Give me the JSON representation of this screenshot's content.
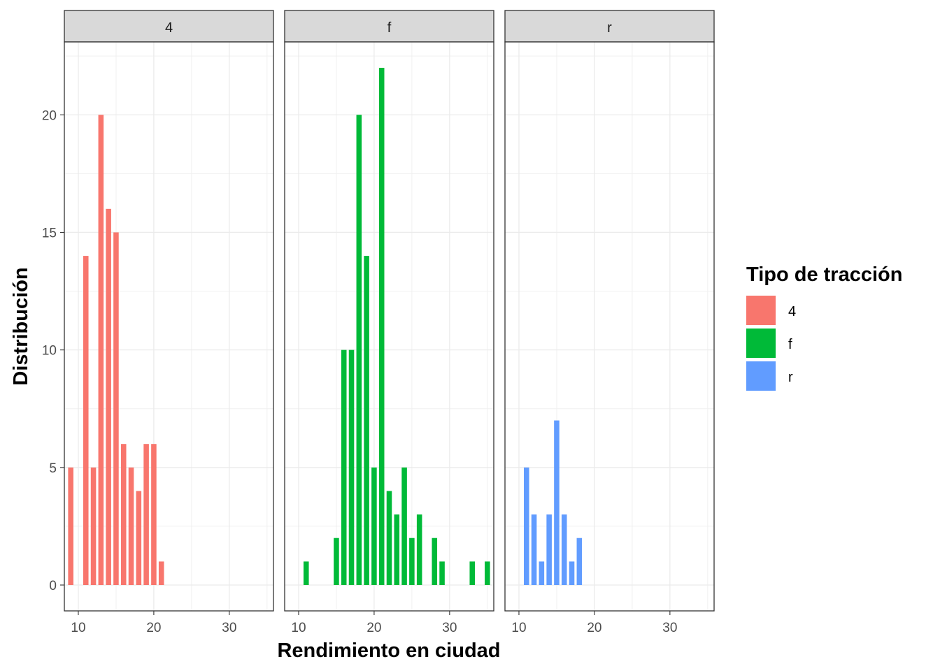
{
  "chart_data": {
    "type": "bar",
    "facet_variable": "drv",
    "xlabel": "Rendimiento en ciudad",
    "ylabel": "Distribución",
    "xlim": [
      8.15,
      35.85
    ],
    "ylim": [
      -1.1,
      23.1
    ],
    "xticks": [
      10,
      20,
      30
    ],
    "yticks": [
      0,
      5,
      10,
      15,
      20
    ],
    "grid": true,
    "legend": {
      "title": "Tipo de tracción",
      "position": "right",
      "entries": [
        {
          "label": "4",
          "color": "#F8766D"
        },
        {
          "label": "f",
          "color": "#00BA38"
        },
        {
          "label": "r",
          "color": "#619CFF"
        }
      ]
    },
    "facets": [
      {
        "label": "4",
        "color": "#F8766D",
        "bars": [
          {
            "x": 9,
            "y": 5
          },
          {
            "x": 11,
            "y": 14
          },
          {
            "x": 12,
            "y": 5
          },
          {
            "x": 13,
            "y": 20
          },
          {
            "x": 14,
            "y": 16
          },
          {
            "x": 15,
            "y": 15
          },
          {
            "x": 16,
            "y": 6
          },
          {
            "x": 17,
            "y": 5
          },
          {
            "x": 18,
            "y": 4
          },
          {
            "x": 19,
            "y": 6
          },
          {
            "x": 20,
            "y": 6
          },
          {
            "x": 21,
            "y": 1
          }
        ]
      },
      {
        "label": "f",
        "color": "#00BA38",
        "bars": [
          {
            "x": 11,
            "y": 1
          },
          {
            "x": 15,
            "y": 2
          },
          {
            "x": 16,
            "y": 10
          },
          {
            "x": 17,
            "y": 10
          },
          {
            "x": 18,
            "y": 20
          },
          {
            "x": 19,
            "y": 14
          },
          {
            "x": 20,
            "y": 5
          },
          {
            "x": 21,
            "y": 22
          },
          {
            "x": 22,
            "y": 4
          },
          {
            "x": 23,
            "y": 3
          },
          {
            "x": 24,
            "y": 5
          },
          {
            "x": 25,
            "y": 2
          },
          {
            "x": 26,
            "y": 3
          },
          {
            "x": 28,
            "y": 2
          },
          {
            "x": 29,
            "y": 1
          },
          {
            "x": 33,
            "y": 1
          },
          {
            "x": 35,
            "y": 1
          }
        ]
      },
      {
        "label": "r",
        "color": "#619CFF",
        "bars": [
          {
            "x": 11,
            "y": 5
          },
          {
            "x": 12,
            "y": 3
          },
          {
            "x": 13,
            "y": 1
          },
          {
            "x": 14,
            "y": 3
          },
          {
            "x": 15,
            "y": 7
          },
          {
            "x": 16,
            "y": 3
          },
          {
            "x": 17,
            "y": 1
          },
          {
            "x": 18,
            "y": 2
          }
        ]
      }
    ]
  }
}
